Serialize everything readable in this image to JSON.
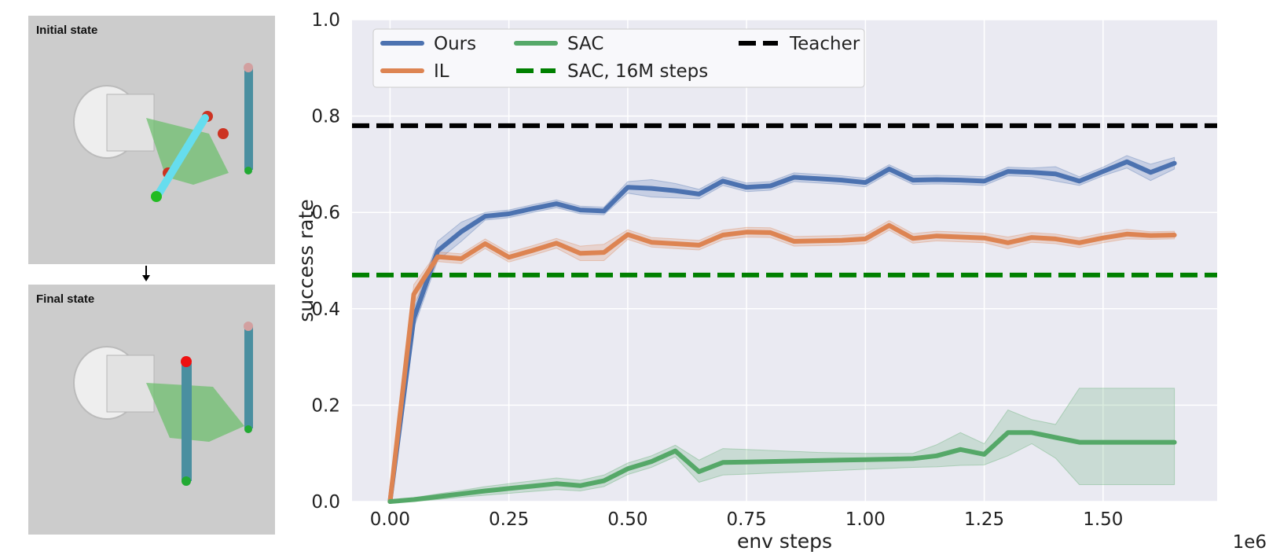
{
  "panels": {
    "initial_label": "Initial state",
    "final_label": "Final state"
  },
  "chart_data": {
    "type": "line",
    "xlabel": "env steps",
    "ylabel": "success rate",
    "x_multiplier_label": "1e6",
    "xlim": [
      -0.08,
      1.74
    ],
    "ylim": [
      0,
      1.0
    ],
    "xticks": [
      "0.00",
      "0.25",
      "0.50",
      "0.75",
      "1.00",
      "1.25",
      "1.50"
    ],
    "yticks": [
      "0.0",
      "0.2",
      "0.4",
      "0.6",
      "0.8",
      "1.0"
    ],
    "grid": true,
    "legend_position": "top-left",
    "colors": {
      "ours": "#4c72b0",
      "il": "#dd8452",
      "sac": "#55a868",
      "sac_16m": "#008000",
      "teacher": "#000000",
      "background": "#eaeaf2"
    },
    "series": [
      {
        "name": "Ours",
        "key": "ours",
        "x": [
          0,
          0.05,
          0.1,
          0.15,
          0.2,
          0.25,
          0.3,
          0.35,
          0.4,
          0.45,
          0.5,
          0.55,
          0.6,
          0.65,
          0.7,
          0.75,
          0.8,
          0.85,
          0.9,
          0.95,
          1.0,
          1.05,
          1.1,
          1.15,
          1.2,
          1.25,
          1.3,
          1.35,
          1.4,
          1.45,
          1.5,
          1.55,
          1.6,
          1.65
        ],
        "y": [
          0.0,
          0.38,
          0.52,
          0.56,
          0.592,
          0.597,
          0.608,
          0.618,
          0.605,
          0.603,
          0.652,
          0.65,
          0.645,
          0.638,
          0.665,
          0.652,
          0.655,
          0.673,
          0.67,
          0.667,
          0.662,
          0.69,
          0.667,
          0.668,
          0.667,
          0.665,
          0.685,
          0.683,
          0.68,
          0.665,
          0.685,
          0.705,
          0.683,
          0.702
        ],
        "band_lo": [
          0.0,
          0.36,
          0.5,
          0.54,
          0.584,
          0.589,
          0.6,
          0.61,
          0.597,
          0.595,
          0.64,
          0.632,
          0.63,
          0.628,
          0.656,
          0.643,
          0.646,
          0.664,
          0.661,
          0.658,
          0.653,
          0.681,
          0.658,
          0.659,
          0.658,
          0.656,
          0.676,
          0.674,
          0.665,
          0.656,
          0.676,
          0.692,
          0.666,
          0.69
        ],
        "band_hi": [
          0.0,
          0.4,
          0.54,
          0.58,
          0.6,
          0.605,
          0.616,
          0.626,
          0.613,
          0.611,
          0.664,
          0.668,
          0.66,
          0.648,
          0.674,
          0.661,
          0.664,
          0.682,
          0.679,
          0.676,
          0.671,
          0.699,
          0.676,
          0.677,
          0.676,
          0.674,
          0.694,
          0.692,
          0.695,
          0.674,
          0.694,
          0.718,
          0.7,
          0.714
        ]
      },
      {
        "name": "IL",
        "key": "il",
        "x": [
          0,
          0.05,
          0.1,
          0.15,
          0.2,
          0.25,
          0.3,
          0.35,
          0.4,
          0.45,
          0.5,
          0.55,
          0.6,
          0.65,
          0.7,
          0.75,
          0.8,
          0.85,
          0.9,
          0.95,
          1.0,
          1.05,
          1.1,
          1.15,
          1.2,
          1.25,
          1.3,
          1.35,
          1.4,
          1.45,
          1.5,
          1.55,
          1.6,
          1.65
        ],
        "y": [
          0.0,
          0.43,
          0.508,
          0.504,
          0.535,
          0.507,
          0.521,
          0.536,
          0.515,
          0.517,
          0.554,
          0.538,
          0.535,
          0.532,
          0.553,
          0.559,
          0.558,
          0.54,
          0.541,
          0.542,
          0.545,
          0.573,
          0.546,
          0.551,
          0.549,
          0.547,
          0.537,
          0.548,
          0.545,
          0.537,
          0.547,
          0.555,
          0.552,
          0.553
        ],
        "band_lo": [
          0.0,
          0.41,
          0.498,
          0.494,
          0.525,
          0.497,
          0.511,
          0.526,
          0.5,
          0.5,
          0.544,
          0.528,
          0.525,
          0.522,
          0.543,
          0.549,
          0.548,
          0.53,
          0.531,
          0.532,
          0.535,
          0.563,
          0.536,
          0.541,
          0.539,
          0.537,
          0.525,
          0.538,
          0.535,
          0.527,
          0.537,
          0.545,
          0.544,
          0.545
        ],
        "band_hi": [
          0.0,
          0.45,
          0.518,
          0.514,
          0.545,
          0.517,
          0.531,
          0.546,
          0.53,
          0.534,
          0.564,
          0.548,
          0.545,
          0.542,
          0.563,
          0.569,
          0.568,
          0.55,
          0.551,
          0.552,
          0.555,
          0.583,
          0.556,
          0.561,
          0.559,
          0.557,
          0.549,
          0.558,
          0.555,
          0.547,
          0.557,
          0.565,
          0.56,
          0.561
        ]
      },
      {
        "name": "SAC",
        "key": "sac",
        "x": [
          0,
          0.05,
          0.1,
          0.15,
          0.2,
          0.25,
          0.3,
          0.35,
          0.4,
          0.45,
          0.5,
          0.55,
          0.6,
          0.65,
          0.7,
          0.75,
          0.8,
          0.85,
          0.9,
          0.95,
          1.0,
          1.05,
          1.1,
          1.15,
          1.2,
          1.25,
          1.3,
          1.35,
          1.4,
          1.45,
          1.5,
          1.55,
          1.6,
          1.65
        ],
        "y": [
          0.0,
          0.004,
          0.01,
          0.016,
          0.022,
          0.027,
          0.032,
          0.037,
          0.033,
          0.043,
          0.068,
          0.083,
          0.105,
          0.062,
          0.081,
          0.082,
          0.083,
          0.084,
          0.085,
          0.086,
          0.087,
          0.088,
          0.089,
          0.095,
          0.108,
          0.098,
          0.143,
          0.143,
          0.133,
          0.123,
          0.123,
          0.123,
          0.123,
          0.123
        ],
        "band_lo": [
          0.0,
          0.0,
          0.004,
          0.009,
          0.013,
          0.017,
          0.021,
          0.025,
          0.022,
          0.031,
          0.056,
          0.071,
          0.093,
          0.04,
          0.055,
          0.057,
          0.059,
          0.061,
          0.063,
          0.065,
          0.067,
          0.069,
          0.071,
          0.072,
          0.075,
          0.076,
          0.095,
          0.12,
          0.09,
          0.035,
          0.035,
          0.035,
          0.035,
          0.035
        ],
        "band_hi": [
          0.0,
          0.008,
          0.016,
          0.023,
          0.031,
          0.037,
          0.043,
          0.049,
          0.044,
          0.055,
          0.08,
          0.095,
          0.117,
          0.086,
          0.11,
          0.108,
          0.106,
          0.104,
          0.102,
          0.101,
          0.1,
          0.1,
          0.1,
          0.118,
          0.143,
          0.12,
          0.19,
          0.17,
          0.16,
          0.235,
          0.235,
          0.235,
          0.235,
          0.235
        ]
      }
    ],
    "reference_lines": [
      {
        "name": "SAC, 16M steps",
        "key": "sac_16m",
        "y": 0.47
      },
      {
        "name": "Teacher",
        "key": "teacher",
        "y": 0.78
      }
    ]
  }
}
